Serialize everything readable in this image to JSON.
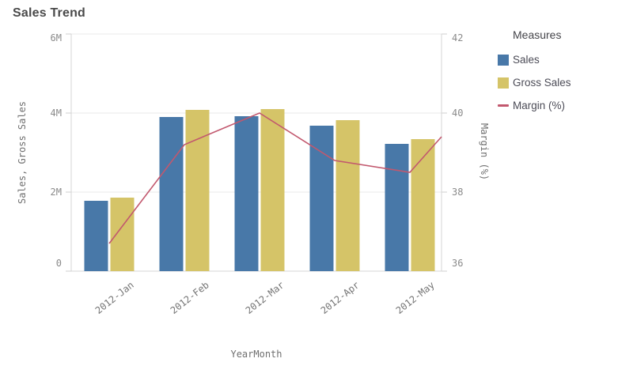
{
  "header": {
    "title": "Sales Trend"
  },
  "legend": {
    "title": "Measures",
    "items": [
      {
        "label": "Sales",
        "swatch": "square",
        "color": "#4878a8"
      },
      {
        "label": "Gross Sales",
        "swatch": "square",
        "color": "#d5c468"
      },
      {
        "label": "Margin (%)",
        "swatch": "line",
        "color": "#c2586e"
      }
    ]
  },
  "chart_data": {
    "type": "combo-bar-line",
    "title": "Sales Trend",
    "categories": [
      "2012-Jan",
      "2012-Feb",
      "2012-Mar",
      "2012-Apr",
      "2012-May"
    ],
    "xlabel": "YearMonth",
    "grid": true,
    "legend_position": "right",
    "left_axis": {
      "label": "Sales, Gross Sales",
      "min": 0,
      "max": 6000000,
      "tick_values": [
        0,
        2000000,
        4000000,
        6000000
      ],
      "tick_labels": [
        "0",
        "2M",
        "4M",
        "6M"
      ]
    },
    "right_axis": {
      "label": "Margin (%)",
      "min": 36,
      "max": 42,
      "tick_values": [
        36,
        38,
        40,
        42
      ],
      "tick_labels": [
        "36",
        "38",
        "40",
        "42"
      ]
    },
    "series": [
      {
        "name": "Sales",
        "type": "bar",
        "axis": "left",
        "color": "#4878a8",
        "values": [
          1780000,
          3900000,
          3920000,
          3680000,
          3220000
        ]
      },
      {
        "name": "Gross Sales",
        "type": "bar",
        "axis": "left",
        "color": "#d5c468",
        "values": [
          1860000,
          4080000,
          4100000,
          3820000,
          3340000
        ]
      },
      {
        "name": "Margin (%)",
        "type": "line",
        "axis": "right",
        "color": "#c2586e",
        "values": [
          36.7,
          39.2,
          40.0,
          38.8,
          38.5
        ],
        "right_edge_value": 39.4
      }
    ],
    "style": {
      "gridline_color": "#e8e8e8",
      "axis_line_color": "#d4d4d4",
      "tick_mark_color": "#cfcfcf"
    }
  }
}
